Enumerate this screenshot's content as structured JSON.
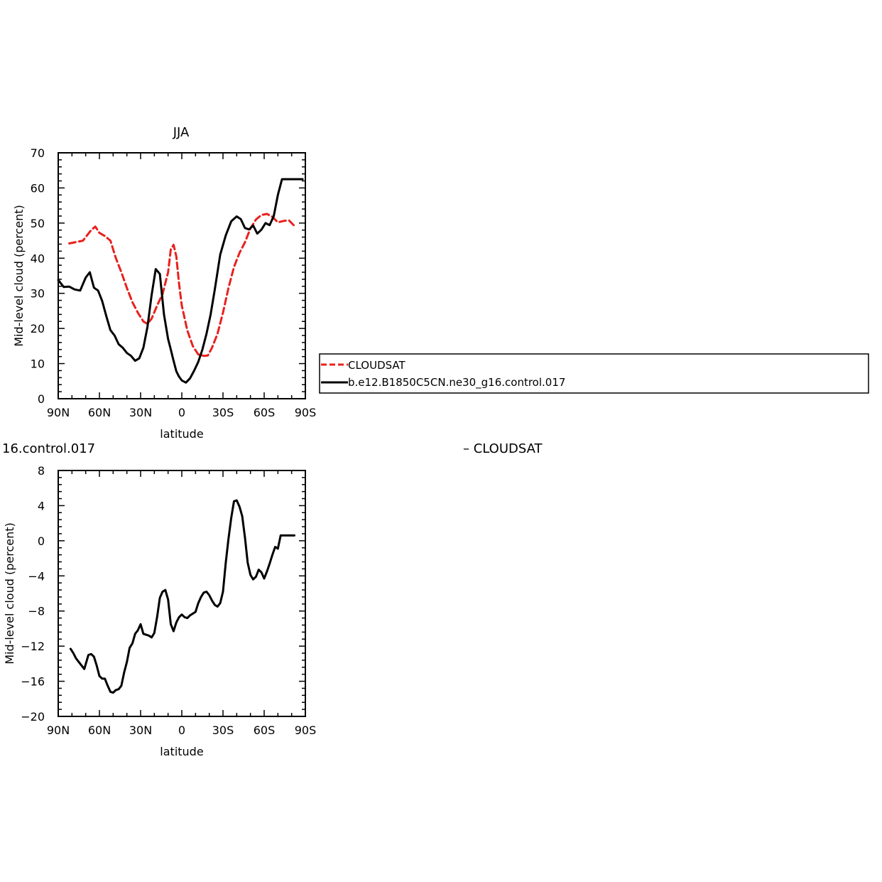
{
  "colors": {
    "cloudsat": "#e8211d",
    "model": "#000000"
  },
  "top_plot": {
    "title": "JJA",
    "xlabel": "latitude",
    "ylabel": "Mid-level cloud (percent)",
    "legend": {
      "entries": [
        "CLOUDSAT",
        "b.e12.B1850C5CN.ne30_g16.control.017"
      ]
    }
  },
  "bottom_plot": {
    "title_fragment": "16.control.017",
    "title_right": "– CLOUDSAT",
    "xlabel": "latitude",
    "ylabel": "Mid-level cloud (percent)"
  },
  "chart_data": [
    {
      "type": "line",
      "title": "JJA",
      "xlabel": "latitude",
      "ylabel": "Mid-level cloud (percent)",
      "x_axis": "latitude (90N to 90S, south negative)",
      "xlim": [
        90,
        -90
      ],
      "ylim": [
        0,
        70
      ],
      "x_tick_values": [
        90,
        60,
        30,
        0,
        -30,
        -60,
        -90
      ],
      "x_tick_labels": [
        "90N",
        "60N",
        "30N",
        "0",
        "30S",
        "60S",
        "90S"
      ],
      "y_tick_values": [
        0,
        10,
        20,
        30,
        40,
        50,
        60,
        70
      ],
      "y_tick_labels": [
        "0",
        "10",
        "20",
        "30",
        "40",
        "50",
        "60",
        "70"
      ],
      "legend_position": "right",
      "series": [
        {
          "name": "CLOUDSAT",
          "style": "dashed",
          "color": "#e8211d",
          "x": [
            82,
            72,
            66,
            63,
            60,
            56,
            52,
            48,
            44,
            40,
            36,
            32,
            28,
            25,
            22,
            18,
            14,
            10,
            8,
            6,
            4,
            2,
            0,
            -4,
            -8,
            -12,
            -16,
            -19,
            -22,
            -26,
            -30,
            -34,
            -38,
            -42,
            -46,
            -50,
            -54,
            -58,
            -62,
            -66,
            -70,
            -74,
            -78,
            -82
          ],
          "y": [
            44.2,
            45,
            48,
            49,
            47.2,
            46.3,
            45,
            40,
            36,
            31.5,
            27.5,
            24.5,
            22,
            21.3,
            22.8,
            26.5,
            29.8,
            36,
            42.5,
            43.8,
            40.5,
            32.8,
            26.5,
            19.5,
            15,
            12.6,
            12.2,
            12.3,
            14.5,
            18.5,
            24.5,
            31.5,
            37.5,
            41.5,
            44.5,
            48.5,
            51,
            52.3,
            52.6,
            51.8,
            50.2,
            50.6,
            50.8,
            49.2
          ]
        },
        {
          "name": "b.e12.B1850C5CN.ne30_g16.control.017",
          "style": "solid",
          "color": "#000000",
          "x": [
            90,
            86,
            82,
            78,
            74,
            70,
            67,
            64,
            61,
            58,
            55,
            52,
            49,
            46,
            43,
            40,
            37,
            34,
            31,
            28,
            25,
            22,
            19,
            16,
            13,
            10,
            8,
            6,
            4,
            2,
            0,
            -3,
            -6,
            -9,
            -12,
            -15,
            -18,
            -21,
            -24,
            -28,
            -32,
            -36,
            -40,
            -43,
            -46,
            -49,
            -52,
            -55,
            -58,
            -61,
            -64,
            -67,
            -70,
            -73,
            -76,
            -79,
            -82,
            -85,
            -88
          ],
          "y": [
            33.8,
            31.8,
            31.9,
            31.1,
            30.8,
            34.5,
            36,
            31.6,
            30.8,
            27.8,
            23.5,
            19.5,
            18,
            15.5,
            14.5,
            13,
            12.2,
            10.8,
            11.5,
            14.5,
            20.5,
            29.5,
            36.9,
            35.5,
            24,
            17,
            14,
            10.8,
            7.8,
            6.3,
            5.2,
            4.6,
            5.8,
            8,
            10.5,
            14,
            18.5,
            24,
            31,
            41,
            46.5,
            50.5,
            51.9,
            51.1,
            48.6,
            48.2,
            49.3,
            47,
            48.1,
            50,
            49.4,
            52,
            58,
            62.5,
            62.5,
            62.5,
            62.5,
            62.5,
            62.5
          ]
        }
      ]
    },
    {
      "type": "line",
      "title": "16.control.017 – CLOUDSAT",
      "xlabel": "latitude",
      "ylabel": "Mid-level cloud (percent)",
      "x_axis": "latitude (90N to 90S, south negative)",
      "xlim": [
        90,
        -90
      ],
      "ylim": [
        -20,
        8
      ],
      "x_tick_values": [
        90,
        60,
        30,
        0,
        -30,
        -60,
        -90
      ],
      "x_tick_labels": [
        "90N",
        "60N",
        "30N",
        "0",
        "30S",
        "60S",
        "90S"
      ],
      "y_tick_values": [
        -20,
        -16,
        -12,
        -8,
        -4,
        0,
        4,
        8
      ],
      "y_tick_labels": [
        "−20",
        "−16",
        "−12",
        "−8",
        "−4",
        "0",
        "4",
        "8"
      ],
      "series": [
        {
          "name": "16.control.017 – CLOUDSAT",
          "style": "solid",
          "color": "#000000",
          "x": [
            81,
            79,
            77,
            74,
            71,
            68,
            66,
            64,
            62,
            60,
            58,
            56,
            54,
            52,
            50,
            48,
            46,
            44,
            42,
            40,
            38,
            36,
            34,
            32,
            30,
            28,
            26,
            24,
            22,
            20,
            18,
            16,
            14,
            12,
            10,
            8,
            6,
            4,
            2,
            0,
            -2,
            -4,
            -6,
            -8,
            -10,
            -12,
            -14,
            -16,
            -18,
            -20,
            -22,
            -24,
            -26,
            -28,
            -30,
            -32,
            -34,
            -36,
            -38,
            -40,
            -42,
            -44,
            -46,
            -48,
            -50,
            -52,
            -54,
            -56,
            -58,
            -60,
            -62,
            -64,
            -66,
            -68,
            -70,
            -72,
            -74,
            -76,
            -78,
            -80,
            -82
          ],
          "y": [
            -12.3,
            -12.8,
            -13.4,
            -14,
            -14.6,
            -13,
            -12.9,
            -13.2,
            -14.2,
            -15.4,
            -15.7,
            -15.7,
            -16.5,
            -17.2,
            -17.3,
            -17,
            -16.9,
            -16.5,
            -15,
            -13.8,
            -12.2,
            -11.7,
            -10.6,
            -10.2,
            -9.5,
            -10.6,
            -10.7,
            -10.8,
            -11,
            -10.5,
            -8.7,
            -6.5,
            -5.8,
            -5.6,
            -6.7,
            -9.5,
            -10.3,
            -9.3,
            -8.7,
            -8.4,
            -8.7,
            -8.8,
            -8.5,
            -8.3,
            -8.1,
            -7.1,
            -6.4,
            -5.9,
            -5.8,
            -6.2,
            -6.8,
            -7.3,
            -7.5,
            -7.1,
            -5.8,
            -2.5,
            0.2,
            2.6,
            4.5,
            4.6,
            3.9,
            2.8,
            0.4,
            -2.5,
            -3.9,
            -4.4,
            -4.1,
            -3.3,
            -3.6,
            -4.3,
            -3.5,
            -2.6,
            -1.6,
            -0.7,
            -0.9,
            0.6,
            0.6,
            0.6,
            0.6,
            0.6,
            0.6
          ]
        }
      ]
    }
  ]
}
